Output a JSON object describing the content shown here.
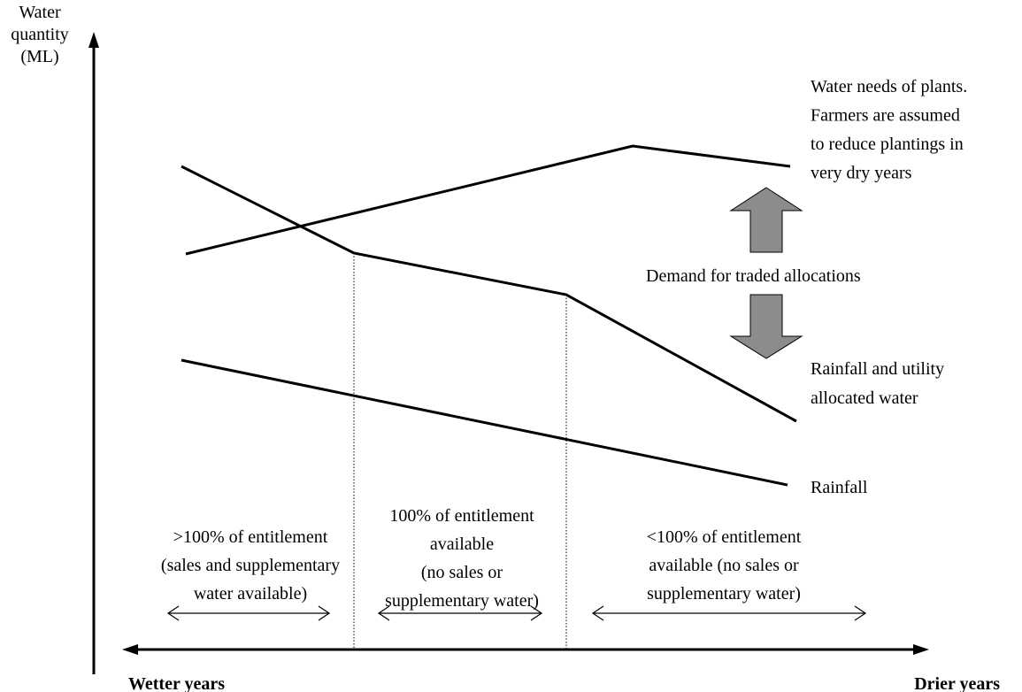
{
  "y_axis_label": [
    "Water",
    "quantity",
    "(ML)"
  ],
  "curves": {
    "needs": [
      "Water needs of plants.",
      "Farmers are assumed",
      "to reduce plantings in",
      "very dry years"
    ],
    "demand": "Demand for traded allocations",
    "allocated": [
      "Rainfall and utility",
      "allocated water"
    ],
    "rainfall": "Rainfall"
  },
  "regions": [
    [
      ">100% of entitlement",
      "(sales and supplementary",
      "water available)"
    ],
    [
      "100% of entitlement",
      "available",
      "(no sales or",
      "supplementary water)"
    ],
    [
      "<100% of entitlement",
      "available (no sales or",
      "supplementary water)"
    ]
  ],
  "x_axis": {
    "left": "Wetter years",
    "right": "Drier years"
  }
}
